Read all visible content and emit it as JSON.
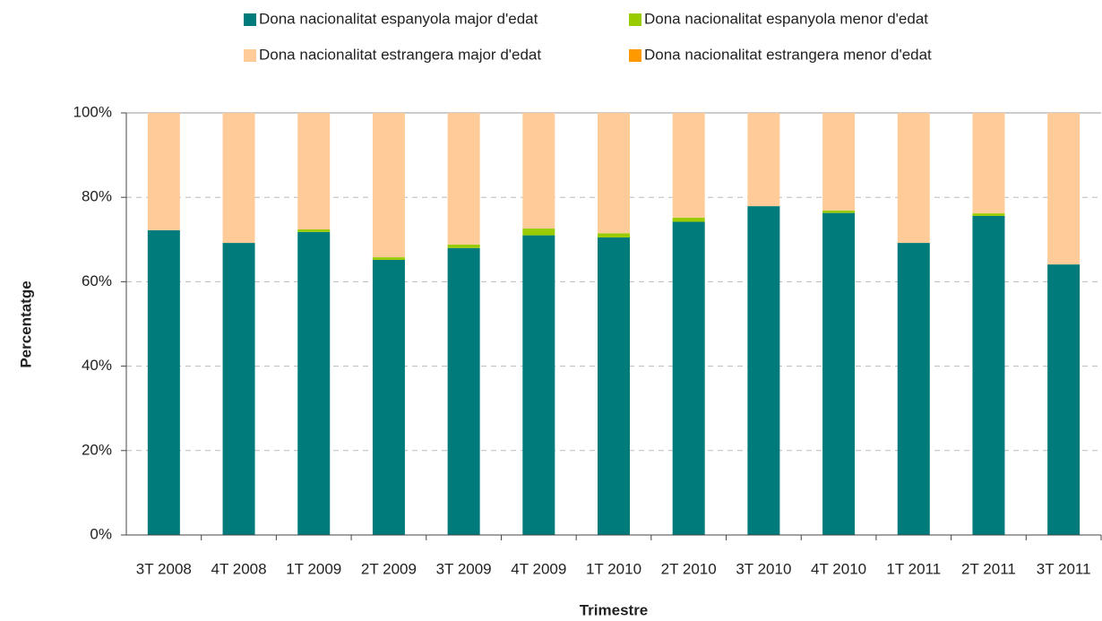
{
  "chart_data": {
    "type": "stacked_bar",
    "x_label": "Trimestre",
    "y_label": "Percentatge",
    "categories": [
      "3T 2008",
      "4T 2008",
      "1T 2009",
      "2T 2009",
      "3T 2009",
      "4T 2009",
      "1T 2010",
      "2T 2010",
      "3T 2010",
      "4T 2010",
      "1T 2011",
      "2T 2011",
      "3T 2011"
    ],
    "series": [
      {
        "name": "Dona nacionalitat espanyola major d'edat",
        "color": "#007b7b",
        "values": [
          72.2,
          69.2,
          71.8,
          65.2,
          68.0,
          71.0,
          70.5,
          74.2,
          77.9,
          76.3,
          69.2,
          75.6,
          64.1
        ]
      },
      {
        "name": "Dona nacionalitat espanyola menor d'edat",
        "color": "#99cc00",
        "values": [
          0,
          0,
          0.6,
          0.6,
          0.8,
          1.6,
          1.0,
          1.0,
          0,
          0.6,
          0,
          0.6,
          0
        ]
      },
      {
        "name": "Dona nacionalitat estrangera major d'edat",
        "color": "#ffcc99",
        "values": [
          27.8,
          30.8,
          27.6,
          34.2,
          31.2,
          27.4,
          28.5,
          24.8,
          22.1,
          23.1,
          30.8,
          23.8,
          35.9
        ]
      },
      {
        "name": "Dona nacionalitat estrangera menor d'edat",
        "color": "#ff9900",
        "values": [
          0,
          0,
          0,
          0,
          0,
          0,
          0,
          0,
          0,
          0,
          0,
          0,
          0
        ]
      }
    ],
    "ylim": [
      0,
      100
    ],
    "yticks": [
      {
        "value": 0,
        "label": "0%"
      },
      {
        "value": 20,
        "label": "20%"
      },
      {
        "value": 40,
        "label": "40%"
      },
      {
        "value": 60,
        "label": "60%"
      },
      {
        "value": 80,
        "label": "80%"
      },
      {
        "value": 100,
        "label": "100%"
      }
    ],
    "grid": true,
    "legend": "top"
  }
}
